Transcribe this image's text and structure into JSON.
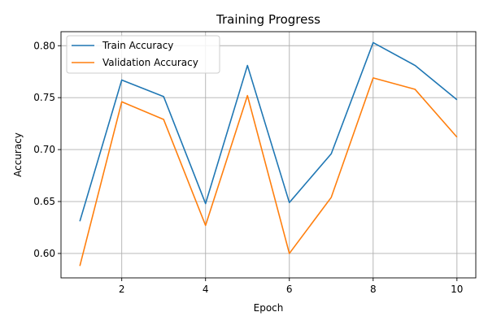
{
  "chart_data": {
    "type": "line",
    "title": "Training Progress",
    "xlabel": "Epoch",
    "ylabel": "Accuracy",
    "xlim": [
      0.55,
      10.45
    ],
    "ylim": [
      0.5765,
      0.8135
    ],
    "xticks": [
      2,
      4,
      6,
      8,
      10
    ],
    "yticks": [
      0.6,
      0.65,
      0.7,
      0.75,
      0.8
    ],
    "ytick_decimals": 2,
    "grid": true,
    "legend_position": "top-left",
    "x": [
      1,
      2,
      3,
      4,
      5,
      6,
      7,
      8,
      9,
      10
    ],
    "series": [
      {
        "name": "Train Accuracy",
        "color": "#1f77b4",
        "values": [
          0.631,
          0.767,
          0.751,
          0.648,
          0.781,
          0.649,
          0.696,
          0.803,
          0.781,
          0.748
        ]
      },
      {
        "name": "Validation Accuracy",
        "color": "#ff7f0e",
        "values": [
          0.588,
          0.746,
          0.729,
          0.627,
          0.752,
          0.6,
          0.654,
          0.769,
          0.758,
          0.712
        ]
      }
    ]
  }
}
